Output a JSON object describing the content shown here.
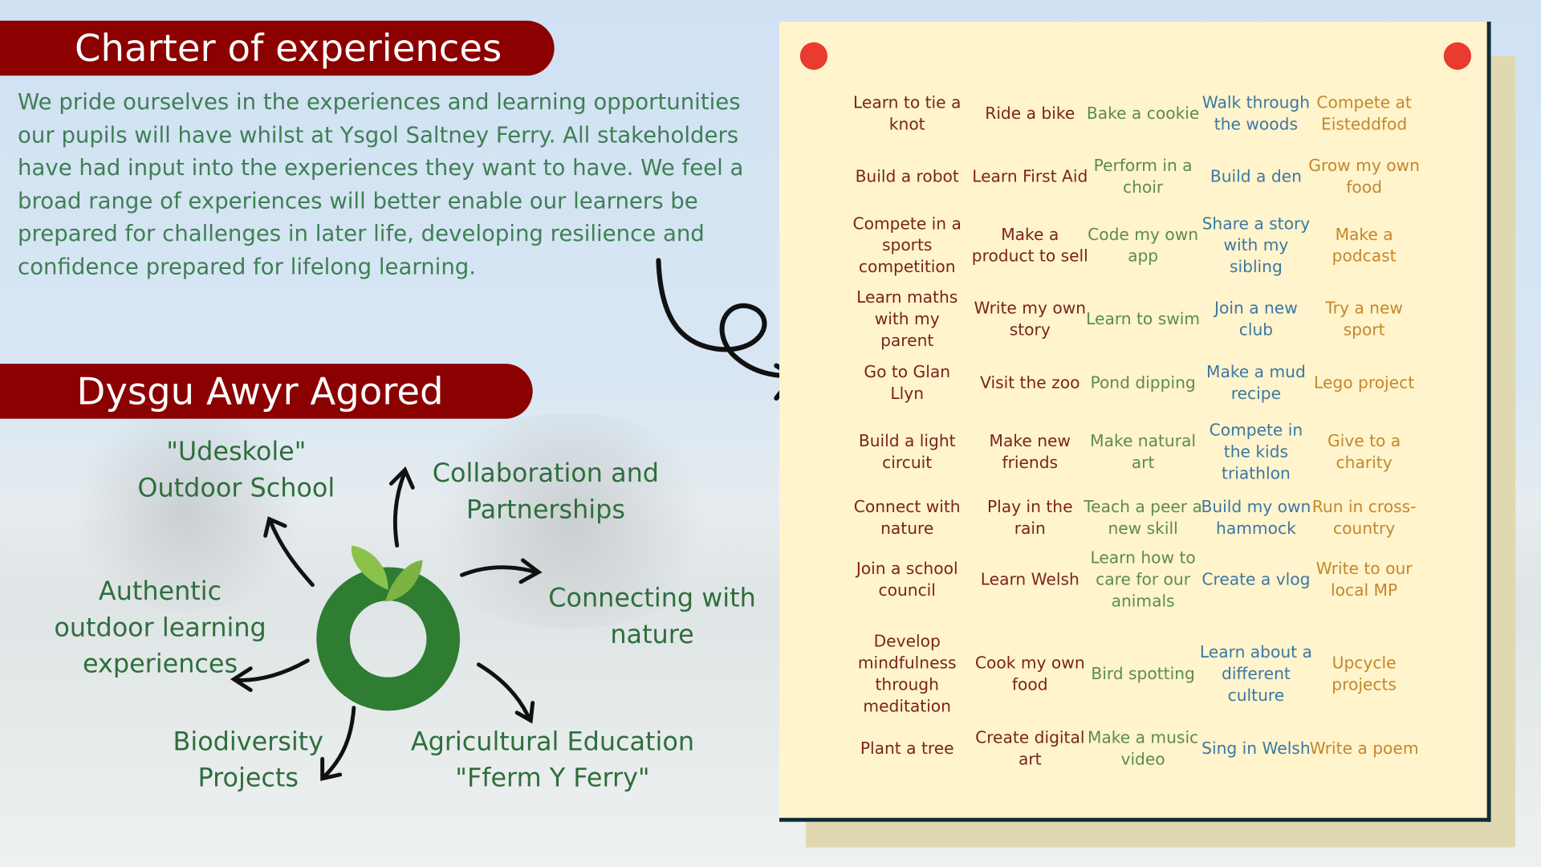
{
  "charter": {
    "title": "Charter of experiences",
    "intro": "We pride ourselves in the experiences and learning opportunities our pupils will have whilst at Ysgol Saltney Ferry. All stakeholders have had input into the experiences they want to have. We feel a broad range of experiences will better enable our learners be prepared for challenges in later life, developing resilience and confidence prepared for lifelong learning."
  },
  "outdoor": {
    "title": "Dysgu Awyr Agored",
    "labels": [
      "\"Udeskole\"\nOutdoor School",
      "Collaboration and\nPartnerships",
      "Connecting with\nnature",
      "Agricultural Education\n\"Fferm Y Ferry\"",
      "Biodiversity\nProjects",
      "Authentic\noutdoor learning\nexperiences"
    ]
  },
  "colors": {
    "banner": "#8b0000",
    "text_green": "#3f7f55",
    "logo_green": "#2e7d32",
    "pin": "#ea3b30",
    "note": "#fff4cc",
    "col1": "#7a2419",
    "col2": "#7a2419",
    "col3": "#5d8b4f",
    "col4": "#3c77a3",
    "col5": "#c5862d"
  },
  "experiences": [
    [
      "Learn to tie a knot",
      "Ride a bike",
      "Bake a cookie",
      "Walk through the woods",
      "Compete at Eisteddfod"
    ],
    [
      "Build a robot",
      "Learn First Aid",
      "Perform in a choir",
      "Build a den",
      "Grow my own food"
    ],
    [
      "Compete in a sports competition",
      "Make a product to sell",
      "Code my own app",
      "Share a story with my sibling",
      "Make a podcast"
    ],
    [
      "Learn maths with my parent",
      "Write my own story",
      "Learn to swim",
      "Join a new club",
      "Try a new sport"
    ],
    [
      "Go to Glan Llyn",
      "Visit the zoo",
      "Pond dipping",
      "Make a mud recipe",
      "Lego project"
    ],
    [
      "Build a light circuit",
      "Make new friends",
      "Make natural art",
      "Compete in the kids triathlon",
      "Give to a charity"
    ],
    [
      "Connect with nature",
      "Play in the rain",
      "Teach a peer a new skill",
      "Build my own hammock",
      "Run in cross-country"
    ],
    [
      "Join a school council",
      "Learn Welsh",
      "Learn how to care for our animals",
      "Create a vlog",
      "Write to our local MP"
    ],
    [
      "Develop mindfulness through meditation",
      "Cook my own food",
      "Bird spotting",
      "Learn about a different culture",
      "Upcycle projects"
    ],
    [
      "Plant a tree",
      "Create digital art",
      "Make a music video",
      "Sing in Welsh",
      "Write a poem"
    ]
  ]
}
